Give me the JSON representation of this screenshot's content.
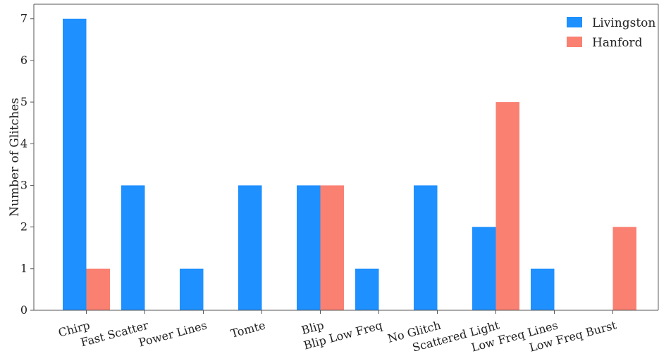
{
  "chart_data": {
    "type": "bar",
    "categories": [
      "Chirp",
      "Fast Scatter",
      "Power Lines",
      "Tomte",
      "Blip",
      "Blip Low Freq",
      "No Glitch",
      "Scattered Light",
      "Low Freq Lines",
      "Low Freq Burst"
    ],
    "series": [
      {
        "name": "Livingston",
        "color": "#1e90ff",
        "values": [
          7,
          3,
          1,
          3,
          3,
          1,
          3,
          2,
          1,
          0
        ]
      },
      {
        "name": "Hanford",
        "color": "#fa8072",
        "values": [
          1,
          0,
          0,
          0,
          3,
          0,
          0,
          5,
          0,
          2
        ]
      }
    ],
    "title": "",
    "xlabel": "",
    "ylabel": "Number of Glitches",
    "ylim": [
      0,
      7.35
    ],
    "yticks": [
      0,
      1,
      2,
      3,
      4,
      5,
      6,
      7
    ],
    "grid": false,
    "legend_position": "top-right"
  }
}
